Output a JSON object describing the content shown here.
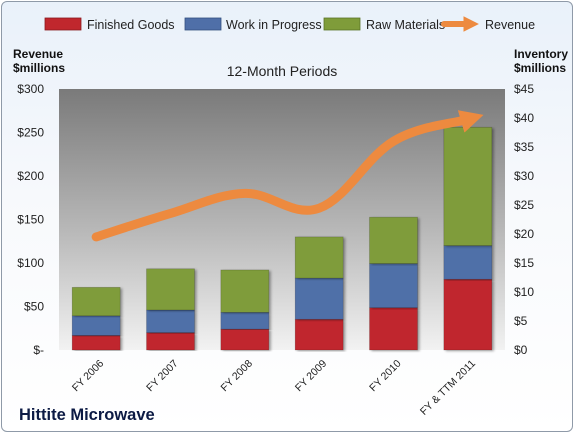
{
  "company": "Hittite Microwave",
  "chart_data": {
    "type": "bar",
    "stacked": true,
    "title": "12-Month Periods",
    "categories": [
      "FY 2006",
      "FY 2007",
      "FY 2008",
      "FY 2009",
      "FY 2010",
      "FY & TTM 2011"
    ],
    "left_axis": {
      "label_line1": "Revenue",
      "label_line2": "$millions",
      "range": [
        0,
        300
      ],
      "ticks": [
        {
          "value": 0,
          "label": "$-"
        },
        {
          "value": 50,
          "label": "$50"
        },
        {
          "value": 100,
          "label": "$100"
        },
        {
          "value": 150,
          "label": "$150"
        },
        {
          "value": 200,
          "label": "$200"
        },
        {
          "value": 250,
          "label": "$250"
        },
        {
          "value": 300,
          "label": "$300"
        }
      ]
    },
    "right_axis": {
      "label_line1": "Inventory",
      "label_line2": "$millions",
      "range": [
        0,
        45
      ],
      "ticks": [
        {
          "value": 0,
          "label": "$0"
        },
        {
          "value": 5,
          "label": "$5"
        },
        {
          "value": 10,
          "label": "$10"
        },
        {
          "value": 15,
          "label": "$15"
        },
        {
          "value": 20,
          "label": "$20"
        },
        {
          "value": 25,
          "label": "$25"
        },
        {
          "value": 30,
          "label": "$30"
        },
        {
          "value": 35,
          "label": "$35"
        },
        {
          "value": 40,
          "label": "$40"
        },
        {
          "value": 45,
          "label": "$45"
        }
      ]
    },
    "series": [
      {
        "name": "Finished Goods",
        "axis": "right",
        "color": "#c0272d",
        "values": [
          2.5,
          3.0,
          3.6,
          5.3,
          7.3,
          12.2
        ]
      },
      {
        "name": "Work in Progress",
        "axis": "right",
        "color": "#4f6fa8",
        "values": [
          3.4,
          3.9,
          2.9,
          7.1,
          7.6,
          5.8
        ]
      },
      {
        "name": "Raw Materials",
        "axis": "right",
        "color": "#7f9c3a",
        "values": [
          4.9,
          7.1,
          7.3,
          7.1,
          8.0,
          20.4
        ]
      }
    ],
    "line_series": {
      "name": "Revenue",
      "axis": "left",
      "color": "#ed8a3f",
      "values": [
        130,
        157,
        180,
        163,
        240,
        265
      ]
    },
    "legend_position": "top",
    "grid": false
  }
}
